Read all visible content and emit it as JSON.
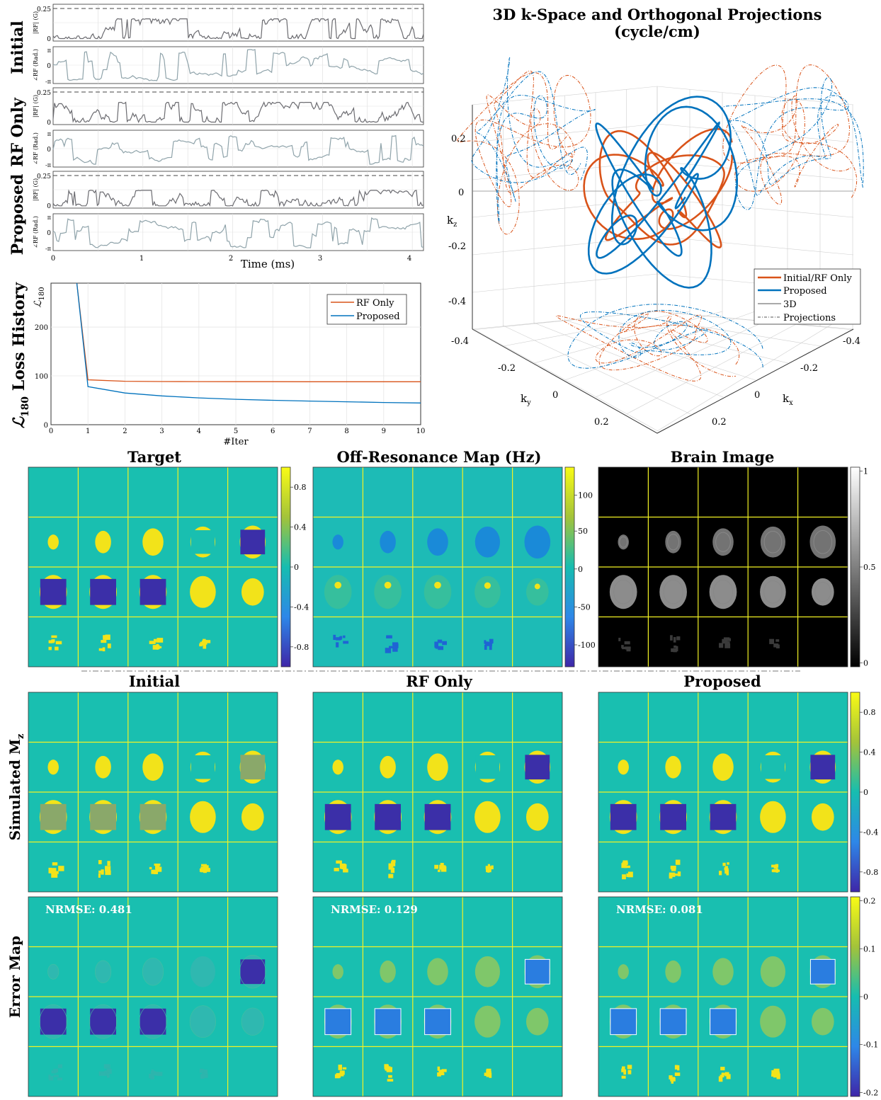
{
  "colors": {
    "rf_magnitude": "#6b6b70",
    "rf_phase": "#8fa3aa",
    "orange": "#d95319",
    "blue": "#0072bd",
    "teal": "#19bfb0",
    "yellow": "#f2e31a",
    "indigo": "#3b2fa8",
    "grid_yellow": "#f2f224"
  },
  "rf_panel": {
    "groups": [
      "Initial",
      "RF Only",
      "Proposed"
    ],
    "mag_ylabel": "|RF| (G)",
    "phase_ylabel": "∠RF (Rad.)",
    "mag_ticks": [
      "0.25",
      "0"
    ],
    "phase_ticks": [
      "π",
      "0",
      "-π"
    ],
    "xlabel": "Time (ms)",
    "xticks": [
      "0",
      "1",
      "2",
      "3",
      "4"
    ]
  },
  "loss": {
    "title": "Loss History",
    "title_symbol": "ℒ",
    "title_sub": "180",
    "ylabel_symbol": "ℒ",
    "ylabel_sub": "180",
    "xlabel": "#Iter",
    "xticks": [
      "0",
      "1",
      "2",
      "3",
      "4",
      "5",
      "6",
      "7",
      "8",
      "9",
      "10"
    ],
    "yticks": [
      "0",
      "100",
      "200"
    ],
    "legend": [
      "RF Only",
      "Proposed"
    ]
  },
  "chart_data": {
    "type": "line",
    "x": [
      0,
      0.7,
      1,
      2,
      3,
      4,
      5,
      6,
      7,
      8,
      9,
      10
    ],
    "series": [
      {
        "name": "RF Only",
        "values": [
          null,
          290,
          92,
          89,
          88.5,
          88.3,
          88.2,
          88.1,
          88,
          88,
          88,
          88
        ]
      },
      {
        "name": "Proposed",
        "values": [
          null,
          290,
          78,
          65,
          59,
          55,
          52,
          50,
          48.5,
          47,
          45.5,
          44.5
        ]
      }
    ],
    "xlim": [
      0,
      10
    ],
    "ylim": [
      0,
      290
    ]
  },
  "kspace": {
    "title_line1": "3D k-Space and Orthogonal Projections",
    "title_line2": "(cycle/cm)",
    "kz": "k",
    "kz_sub": "z",
    "kx": "k",
    "kx_sub": "x",
    "ky": "k",
    "ky_sub": "y",
    "z_ticks": [
      "0.2",
      "0",
      "-0.2",
      "-0.4"
    ],
    "x_ticks": [
      "-0.4",
      "-0.2",
      "0",
      "0.2"
    ],
    "y_ticks": [
      "-0.4",
      "-0.2",
      "0",
      "0.2"
    ],
    "legend": [
      "Initial/RF Only",
      "Proposed",
      "3D",
      "Projections"
    ]
  },
  "maps_row": {
    "titles": [
      "Target",
      "Off-Resonance Map (Hz)",
      "Brain Image"
    ],
    "cbar_target": [
      "0.8",
      "0.4",
      "0",
      "-0.4",
      "-0.8"
    ],
    "cbar_offres": [
      "100",
      "50",
      "0",
      "-50",
      "-100"
    ],
    "cbar_brain": [
      "1",
      "0.5",
      "0"
    ]
  },
  "sim_row": {
    "titles": [
      "Initial",
      "RF Only",
      "Proposed"
    ],
    "row_label": "Simulated M",
    "row_label_sub": "z",
    "cbar": [
      "0.8",
      "0.4",
      "0",
      "-0.4",
      "-0.8"
    ]
  },
  "err_row": {
    "row_label": "Error Map",
    "nrmse": [
      "NRMSE: 0.481",
      "NRMSE: 0.129",
      "NRMSE: 0.081"
    ],
    "cbar": [
      "0.2",
      "0.1",
      "0",
      "-0.1",
      "-0.2"
    ]
  }
}
